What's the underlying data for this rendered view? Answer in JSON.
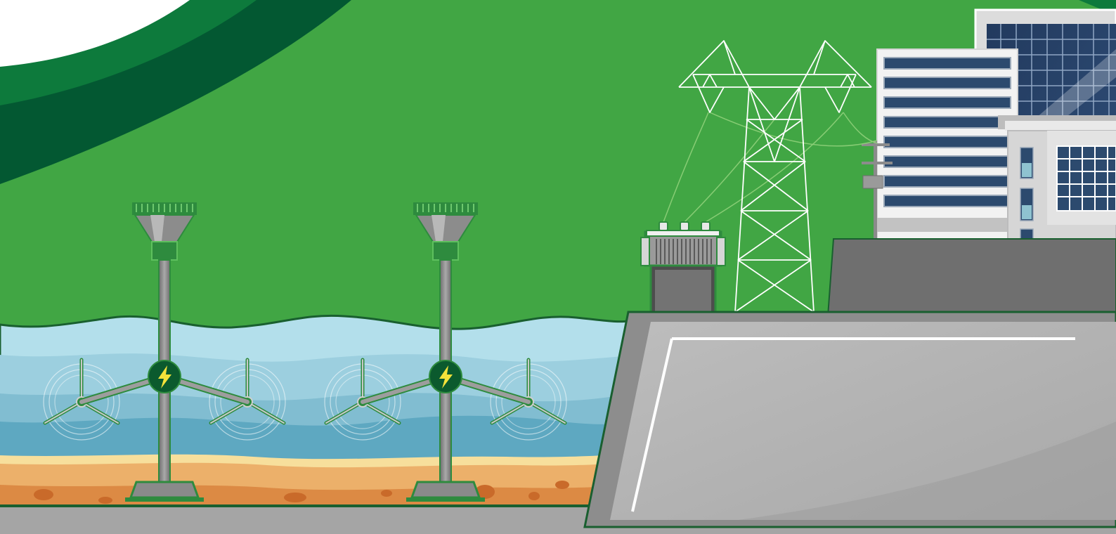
{
  "scene": {
    "description_type": "illustration",
    "colors": {
      "sky": "#41a644",
      "swoosh_dark": "#045a32",
      "swoosh_mid": "#0d7a3c",
      "water_light": "#a9dbe8",
      "water_mid": "#8cc9d9",
      "water_deep": "#5ba8c0",
      "sand_light": "#f6d28b",
      "sand": "#eaa964",
      "sand_dark": "#d9843f",
      "concrete": "#b3b3b3",
      "concrete_dark": "#8a8a8a",
      "turbine_green": "#2e8b3e",
      "bolt": "#f4e23a"
    },
    "elements": {
      "turbine_units": [
        "tidal-turbine-left",
        "tidal-turbine-right"
      ],
      "power_icon": "lightning-bolt-icon",
      "structures": [
        "transformer",
        "transmission-tower",
        "utility-pole",
        "office-building",
        "solar-glass-building",
        "side-building"
      ]
    }
  }
}
